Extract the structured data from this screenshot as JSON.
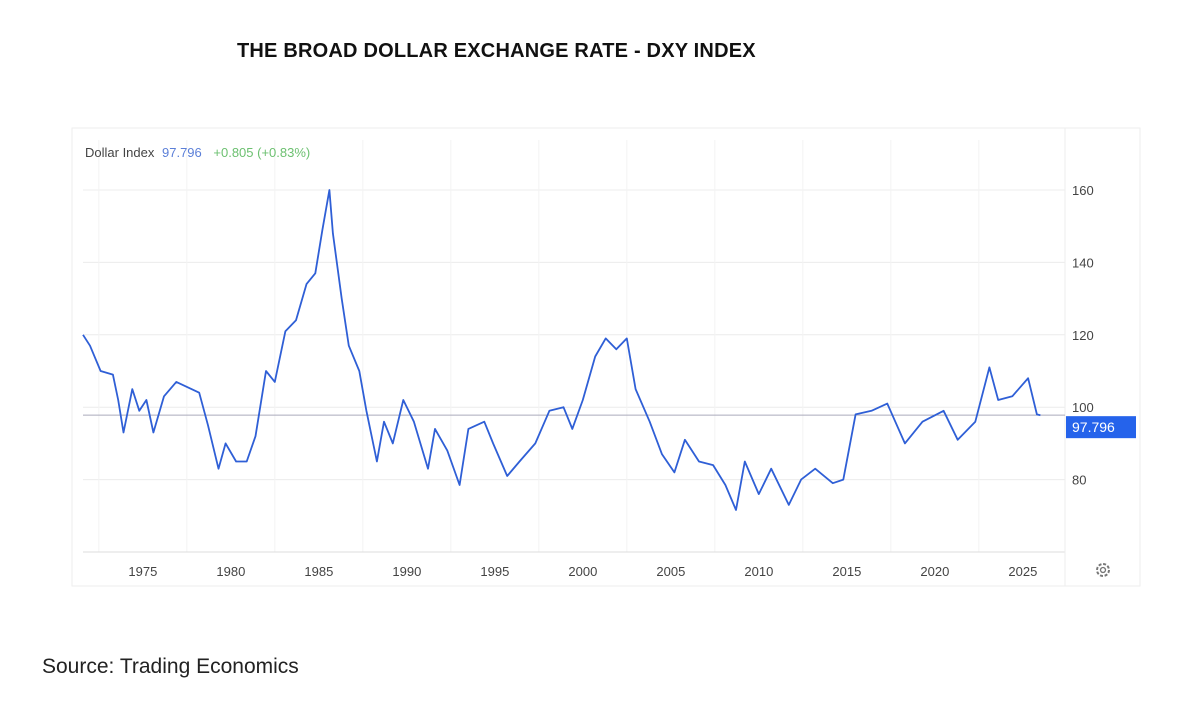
{
  "title": "THE BROAD DOLLAR EXCHANGE RATE - DXY INDEX",
  "source": "Source: Trading Economics",
  "chart_data": {
    "type": "line",
    "legend": {
      "label": "Dollar Index",
      "value": "97.796",
      "change": "+0.805 (+0.83%)"
    },
    "last_value_label": "97.796",
    "colors": {
      "line": "#2f5fd6",
      "value": "#5b7fd8",
      "change": "#6cc070",
      "badge": "#2563eb"
    },
    "xlim": [
      1971.6,
      2026.5
    ],
    "ylim": [
      60,
      165
    ],
    "y_ticks": [
      80,
      100,
      120,
      140,
      160
    ],
    "y_axis_side": "right",
    "x_ticks": [
      1975,
      1980,
      1985,
      1990,
      1995,
      2000,
      2005,
      2010,
      2015,
      2020,
      2025
    ],
    "grid": true,
    "x": [
      1971.6,
      1972.0,
      1972.6,
      1973.3,
      1973.6,
      1973.9,
      1974.4,
      1974.8,
      1975.2,
      1975.6,
      1976.2,
      1976.9,
      1978.2,
      1978.7,
      1979.3,
      1979.7,
      1980.3,
      1980.9,
      1981.4,
      1982.0,
      1982.5,
      1983.1,
      1983.7,
      1984.3,
      1984.8,
      1985.2,
      1985.6,
      1985.8,
      1986.3,
      1986.7,
      1987.3,
      1987.7,
      1988.3,
      1988.7,
      1989.2,
      1989.8,
      1990.4,
      1991.2,
      1991.6,
      1992.3,
      1993.0,
      1993.5,
      1994.4,
      1994.9,
      1995.7,
      1996.4,
      1997.3,
      1998.1,
      1998.9,
      1999.4,
      2000.0,
      2000.7,
      2001.3,
      2001.9,
      2002.5,
      2003.0,
      2003.8,
      2004.5,
      2005.2,
      2005.8,
      2006.6,
      2007.4,
      2008.1,
      2008.7,
      2009.2,
      2010.0,
      2010.7,
      2011.7,
      2012.4,
      2013.2,
      2014.2,
      2014.8,
      2015.5,
      2016.4,
      2017.3,
      2018.3,
      2019.3,
      2020.5,
      2021.3,
      2022.3,
      2023.1,
      2023.6,
      2024.4,
      2025.3,
      2025.8,
      2026.0
    ],
    "values": [
      120,
      117,
      110,
      109,
      102,
      93,
      105,
      99,
      102,
      93,
      103,
      107,
      104,
      95,
      83,
      90,
      85,
      85,
      92,
      110,
      107,
      121,
      124,
      134,
      137,
      149,
      160,
      148,
      130,
      117,
      110,
      99,
      85,
      96,
      90,
      102,
      96,
      83,
      94,
      88,
      78.5,
      94,
      96,
      90,
      81,
      85,
      90,
      99,
      100,
      94,
      102,
      114,
      119,
      116,
      119,
      105,
      96,
      87,
      82,
      91,
      85,
      84,
      78.5,
      71.6,
      85,
      76,
      83,
      73,
      80,
      83,
      79,
      80,
      98,
      99,
      101,
      90,
      96,
      99,
      91,
      96,
      111,
      102,
      103,
      108,
      98,
      97.8
    ]
  }
}
